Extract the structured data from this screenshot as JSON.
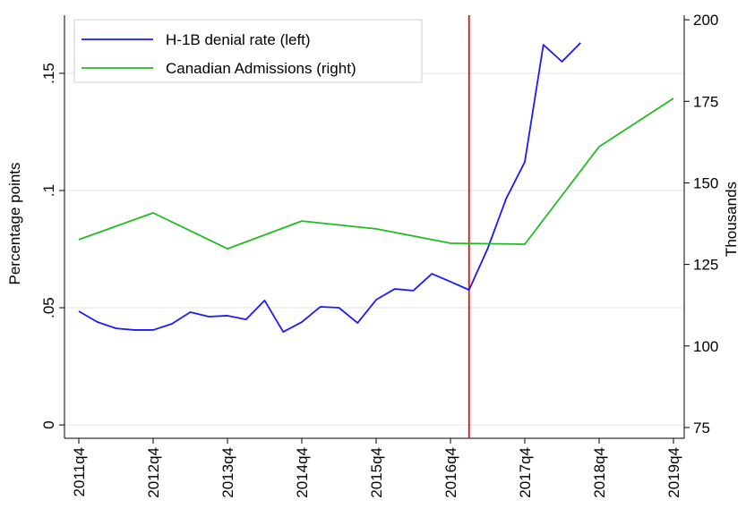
{
  "chart_data": {
    "type": "line",
    "categories": [
      "2011q4",
      null,
      null,
      null,
      "2012q4",
      null,
      null,
      null,
      "2013q4",
      null,
      null,
      null,
      "2014q4",
      null,
      null,
      null,
      "2015q4",
      null,
      null,
      null,
      "2016q4",
      null,
      null,
      null,
      "2017q4",
      null,
      null,
      null,
      "2018q4",
      null,
      null,
      null,
      "2019q4"
    ],
    "series": [
      {
        "name": "H-1B denial rate (left)",
        "color": "#1a1aff",
        "axis": "y",
        "values": [
          0.0485,
          0.0439,
          0.0412,
          0.0405,
          0.0405,
          0.0431,
          0.0481,
          0.0462,
          0.0466,
          0.045,
          0.0531,
          0.0397,
          0.0439,
          0.0504,
          0.05,
          0.0435,
          0.0534,
          0.058,
          0.0573,
          0.0645,
          0.0611,
          0.0576,
          0.0752,
          0.0966,
          0.1122,
          0.1622,
          0.155,
          0.163,
          null,
          null,
          null,
          null,
          null
        ]
      },
      {
        "name": "Canadian Admissions (right)",
        "color": "#22bb22",
        "axis": "y2",
        "x": [
          "2011q4",
          "2012q4",
          "2013q4",
          "2014q4",
          "2015q4",
          "2016q4",
          "2017q4",
          "2018q4",
          "2019q4"
        ],
        "values": [
          132.6,
          140.8,
          129.8,
          138.3,
          135.9,
          131.5,
          131.2,
          161.1,
          175.9
        ]
      }
    ],
    "ylabel": "Percentage points",
    "y2label": "Thousands",
    "ylim": [
      -0.0057,
      0.1748
    ],
    "yticks": [
      0,
      {
        "value": 0.05,
        "label": ".05"
      },
      {
        "value": 0.1,
        "label": ".1"
      },
      {
        "value": 0.15,
        "label": ".15"
      }
    ],
    "y2lim": [
      71.7,
      201.4
    ],
    "y2ticks": [
      75,
      100,
      125,
      150,
      175,
      200
    ],
    "grid": true,
    "legend": "upper left",
    "vline": {
      "category_index": 21,
      "color": "#dd1111"
    }
  }
}
